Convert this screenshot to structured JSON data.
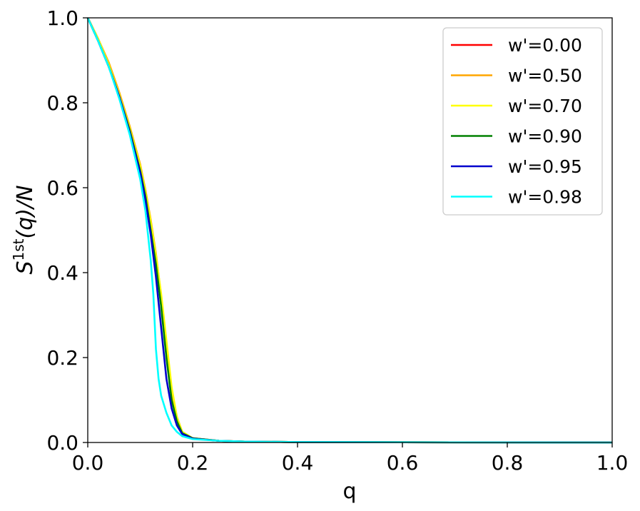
{
  "chart_data": {
    "type": "line",
    "xlabel": "q",
    "ylabel_parts": {
      "base": "S",
      "sup": "1st",
      "rest": "(q)/N"
    },
    "xlim": [
      0.0,
      1.0
    ],
    "ylim": [
      0.0,
      1.0
    ],
    "xticks": [
      "0.0",
      "0.2",
      "0.4",
      "0.6",
      "0.8",
      "1.0"
    ],
    "yticks": [
      "0.0",
      "0.2",
      "0.4",
      "0.6",
      "0.8",
      "1.0"
    ],
    "grid": false,
    "legend_position": "top-right",
    "series": [
      {
        "name": "w'=0.00",
        "color": "#ff0000",
        "x": [
          0,
          0.02,
          0.04,
          0.06,
          0.08,
          0.1,
          0.11,
          0.12,
          0.13,
          0.14,
          0.15,
          0.16,
          0.17,
          0.18,
          0.2,
          0.25,
          0.3,
          0.4,
          0.6,
          1.0
        ],
        "y": [
          1.0,
          0.95,
          0.89,
          0.82,
          0.74,
          0.65,
          0.59,
          0.52,
          0.44,
          0.34,
          0.22,
          0.12,
          0.06,
          0.025,
          0.01,
          0.004,
          0.002,
          0.001,
          0.0005,
          0.0
        ]
      },
      {
        "name": "w'=0.50",
        "color": "#ffa500",
        "x": [
          0,
          0.02,
          0.04,
          0.06,
          0.08,
          0.1,
          0.11,
          0.12,
          0.13,
          0.14,
          0.15,
          0.16,
          0.17,
          0.18,
          0.2,
          0.25,
          0.3,
          0.4,
          0.6,
          1.0
        ],
        "y": [
          1.0,
          0.95,
          0.895,
          0.825,
          0.745,
          0.655,
          0.595,
          0.525,
          0.445,
          0.345,
          0.225,
          0.12,
          0.06,
          0.025,
          0.01,
          0.004,
          0.002,
          0.001,
          0.0005,
          0.0
        ]
      },
      {
        "name": "w'=0.70",
        "color": "#ffff00",
        "x": [
          0,
          0.02,
          0.04,
          0.06,
          0.08,
          0.1,
          0.11,
          0.12,
          0.13,
          0.14,
          0.15,
          0.16,
          0.17,
          0.18,
          0.2,
          0.25,
          0.3,
          0.4,
          0.6,
          1.0
        ],
        "y": [
          1.0,
          0.95,
          0.89,
          0.82,
          0.74,
          0.65,
          0.59,
          0.52,
          0.44,
          0.35,
          0.24,
          0.13,
          0.06,
          0.025,
          0.01,
          0.004,
          0.002,
          0.001,
          0.0005,
          0.0
        ]
      },
      {
        "name": "w'=0.90",
        "color": "#008000",
        "x": [
          0,
          0.02,
          0.04,
          0.06,
          0.08,
          0.1,
          0.11,
          0.12,
          0.13,
          0.14,
          0.15,
          0.16,
          0.17,
          0.18,
          0.2,
          0.25,
          0.3,
          0.4,
          0.6,
          1.0
        ],
        "y": [
          1.0,
          0.945,
          0.885,
          0.815,
          0.735,
          0.64,
          0.58,
          0.5,
          0.42,
          0.32,
          0.2,
          0.1,
          0.05,
          0.022,
          0.01,
          0.004,
          0.002,
          0.001,
          0.0005,
          0.0
        ]
      },
      {
        "name": "w'=0.95",
        "color": "#0000cd",
        "x": [
          0,
          0.02,
          0.04,
          0.06,
          0.08,
          0.1,
          0.11,
          0.12,
          0.13,
          0.14,
          0.15,
          0.16,
          0.17,
          0.18,
          0.2,
          0.25,
          0.3,
          0.4,
          0.6,
          1.0
        ],
        "y": [
          1.0,
          0.945,
          0.885,
          0.815,
          0.73,
          0.635,
          0.57,
          0.49,
          0.39,
          0.27,
          0.15,
          0.08,
          0.04,
          0.02,
          0.009,
          0.004,
          0.002,
          0.001,
          0.0005,
          0.0
        ]
      },
      {
        "name": "w'=0.98",
        "color": "#00ffff",
        "x": [
          0,
          0.02,
          0.04,
          0.06,
          0.08,
          0.1,
          0.11,
          0.12,
          0.125,
          0.13,
          0.135,
          0.14,
          0.15,
          0.16,
          0.17,
          0.18,
          0.2,
          0.25,
          0.3,
          0.4,
          0.6,
          1.0
        ],
        "y": [
          1.0,
          0.945,
          0.885,
          0.81,
          0.725,
          0.62,
          0.545,
          0.43,
          0.35,
          0.22,
          0.15,
          0.11,
          0.07,
          0.04,
          0.025,
          0.015,
          0.008,
          0.004,
          0.002,
          0.001,
          0.0005,
          0.0
        ]
      }
    ]
  }
}
